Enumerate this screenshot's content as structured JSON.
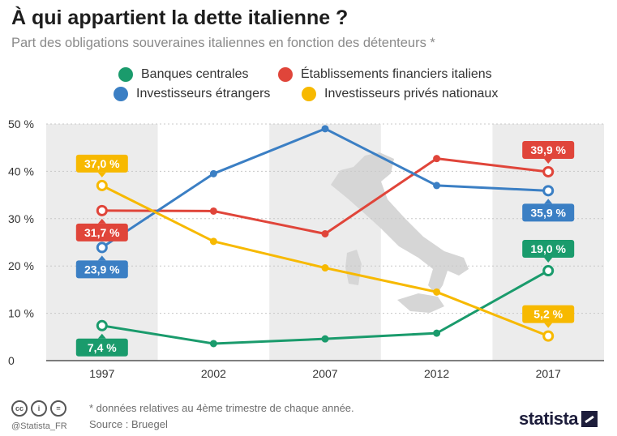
{
  "title": "À qui appartient la dette italienne ?",
  "subtitle": "Part des obligations souveraines italiennes en fonction des détenteurs *",
  "footnote": "* données relatives au 4ème trimestre de chaque année.",
  "source": "Source : Bruegel",
  "handle": "@Statista_FR",
  "brand": "statista",
  "cc_icons": [
    "cc-icon",
    "by-icon",
    "nd-icon"
  ],
  "chart_data": {
    "type": "line",
    "x": [
      1997,
      2002,
      2007,
      2012,
      2017
    ],
    "y_ticks": [
      "0",
      "10 %",
      "20 %",
      "30 %",
      "40 %",
      "50 %"
    ],
    "ylim": [
      0,
      50
    ],
    "grid": true,
    "legend_position": "top",
    "series": [
      {
        "name": "Banques centrales",
        "color": "#1a9b6c",
        "values": [
          7.4,
          3.6,
          4.6,
          5.8,
          19.0
        ],
        "labels": [
          "7,4 %",
          "",
          "",
          "",
          "19,0 %"
        ]
      },
      {
        "name": "Établissements financiers italiens",
        "color": "#e0453a",
        "values": [
          31.7,
          31.6,
          26.8,
          42.7,
          39.9
        ],
        "labels": [
          "31,7 %",
          "",
          "",
          "",
          "39,9 %"
        ]
      },
      {
        "name": "Investisseurs étrangers",
        "color": "#3b7fc4",
        "values": [
          23.9,
          39.5,
          49.0,
          37.0,
          35.9
        ],
        "labels": [
          "23,9 %",
          "",
          "",
          "",
          "35,9 %"
        ]
      },
      {
        "name": "Investisseurs privés nationaux",
        "color": "#f7b900",
        "values": [
          37.0,
          25.2,
          19.6,
          14.5,
          5.2
        ],
        "labels": [
          "37,0 %",
          "",
          "",
          "",
          "5,2 %"
        ]
      }
    ]
  }
}
